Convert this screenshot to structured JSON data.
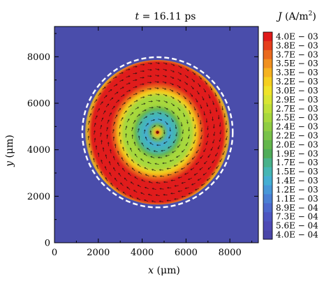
{
  "chart_data": {
    "type": "heatmap",
    "title_var": "t",
    "title_rest": " = 16.11 ps",
    "xlabel_var": "x",
    "xlabel_unit": " (μm)",
    "ylabel_var": "y",
    "ylabel_unit": " (μm)",
    "colorbar_label_var": "J",
    "colorbar_label_unit": " (A/m",
    "colorbar_label_sup": "2",
    "colorbar_label_end": ")",
    "xlim": [
      0,
      9300
    ],
    "ylim": [
      0,
      9300
    ],
    "x_ticks": [
      0,
      2000,
      4000,
      6000,
      8000
    ],
    "y_ticks": [
      0,
      2000,
      4000,
      6000,
      8000
    ],
    "x_tick_labels": [
      "0",
      "2000",
      "4000",
      "6000",
      "8000"
    ],
    "y_tick_labels": [
      "0",
      "2000",
      "4000",
      "6000",
      "8000"
    ],
    "colorbar_levels": [
      "4.0E − 03",
      "3.8E − 03",
      "3.7E − 03",
      "3.5E − 03",
      "3.3E − 03",
      "3.2E − 03",
      "3.0E − 03",
      "2.9E − 03",
      "2.7E − 03",
      "2.5E − 03",
      "2.4E − 03",
      "2.2E − 03",
      "2.0E − 03",
      "1.9E − 03",
      "1.7E − 03",
      "1.5E − 03",
      "1.4E − 03",
      "1.2E − 03",
      "1.1E − 03",
      "8.9E − 04",
      "7.3E − 04",
      "5.6E − 04",
      "4.0E − 04"
    ],
    "colorbar_colors": [
      "#e01a1a",
      "#e53e1c",
      "#ea6a1e",
      "#f0901f",
      "#f5b21f",
      "#f5cf1f",
      "#efe32a",
      "#d8e534",
      "#bfe03a",
      "#a7d83d",
      "#8fcd43",
      "#79c24a",
      "#63b64c",
      "#4fac5a",
      "#48b28b",
      "#45b6b4",
      "#44aed3",
      "#4797d8",
      "#4a7fd4",
      "#4c68cc",
      "#4d55c0",
      "#4d4ab5",
      "#4a46a8"
    ],
    "background_color": "#4a4dab",
    "disk": {
      "center": [
        4700,
        4750
      ],
      "radius": 3300
    },
    "rings": [
      {
        "r": 3300,
        "color": "#f5cf1f"
      },
      {
        "r": 3150,
        "color": "#e01a1a"
      },
      {
        "r": 2050,
        "color": "#ea6a1e"
      },
      {
        "r": 1850,
        "color": "#f5cf1f"
      },
      {
        "r": 1650,
        "color": "#a7d83d"
      },
      {
        "r": 1100,
        "color": "#63b64c"
      },
      {
        "r": 900,
        "color": "#45b6b4"
      },
      {
        "r": 650,
        "color": "#44aed3"
      },
      {
        "r": 420,
        "color": "#63b64c"
      },
      {
        "r": 220,
        "color": "#efe32a"
      },
      {
        "r": 120,
        "color": "#e01a1a"
      }
    ],
    "boundary": {
      "r": 3430,
      "color": "#ffffff",
      "style": "dashed"
    },
    "vector_field": "swirl",
    "grid": false,
    "legend": "right"
  }
}
